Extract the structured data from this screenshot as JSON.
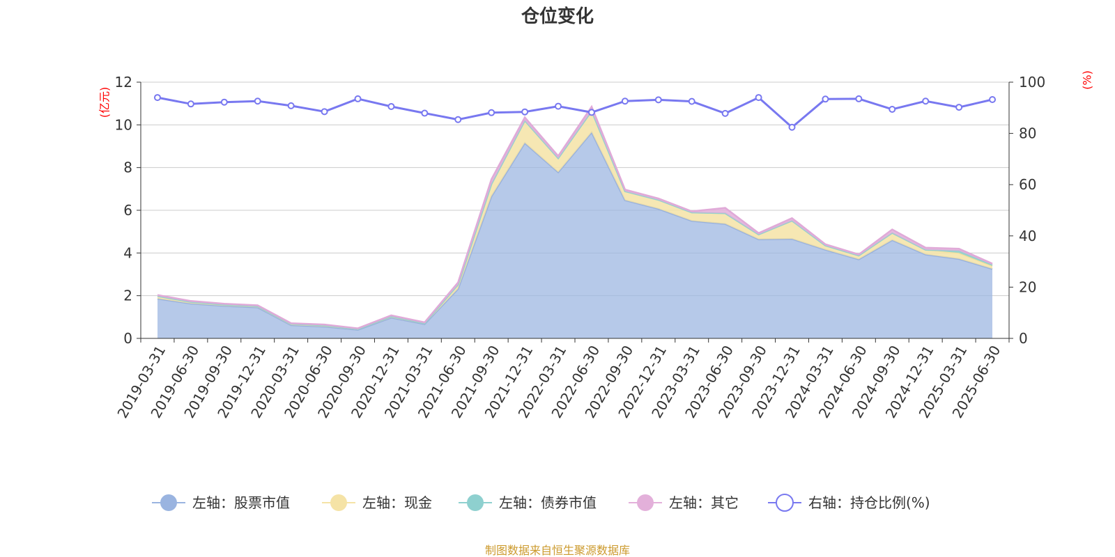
{
  "chart_data": {
    "type": "area",
    "title": "仓位变化",
    "left_axis_unit": "(亿元)",
    "right_axis_unit": "(%)",
    "left_ylim": [
      0,
      12
    ],
    "left_yticks": [
      "0",
      "2",
      "4",
      "6",
      "8",
      "10",
      "12"
    ],
    "right_ylim": [
      0,
      100
    ],
    "right_yticks": [
      "0",
      "20",
      "40",
      "60",
      "80",
      "100"
    ],
    "grid": true,
    "legend_position": "bottom",
    "categories": [
      "2019-03-31",
      "2019-06-30",
      "2019-09-30",
      "2019-12-31",
      "2020-03-31",
      "2020-06-30",
      "2020-09-30",
      "2020-12-31",
      "2021-03-31",
      "2021-06-30",
      "2021-09-30",
      "2021-12-31",
      "2022-03-31",
      "2022-06-30",
      "2022-09-30",
      "2022-12-31",
      "2023-03-31",
      "2023-06-30",
      "2023-09-30",
      "2023-12-31",
      "2024-03-31",
      "2024-06-30",
      "2024-09-30",
      "2024-12-31",
      "2025-03-31",
      "2025-06-30"
    ],
    "series": [
      {
        "name": "左轴：股票市值",
        "axis": "left",
        "kind": "stacked-area",
        "color": "#9ab4e0",
        "values": [
          1.86,
          1.63,
          1.52,
          1.45,
          0.62,
          0.55,
          0.4,
          0.97,
          0.67,
          2.32,
          6.65,
          9.15,
          7.78,
          9.65,
          6.47,
          6.07,
          5.5,
          5.36,
          4.64,
          4.66,
          4.15,
          3.7,
          4.6,
          3.93,
          3.72,
          3.25
        ]
      },
      {
        "name": "左轴：现金",
        "axis": "left",
        "kind": "stacked-area",
        "color": "#f5e3a6",
        "values": [
          0.12,
          0.08,
          0.06,
          0.06,
          0.06,
          0.06,
          0.04,
          0.06,
          0.04,
          0.2,
          0.58,
          1.05,
          0.66,
          1.0,
          0.42,
          0.42,
          0.4,
          0.5,
          0.23,
          0.85,
          0.2,
          0.18,
          0.34,
          0.22,
          0.28,
          0.14
        ]
      },
      {
        "name": "左轴：债券市值",
        "axis": "left",
        "kind": "stacked-area",
        "color": "#8ed0cf",
        "values": [
          0,
          0,
          0,
          0,
          0,
          0,
          0,
          0,
          0,
          0,
          0,
          0,
          0,
          0,
          0,
          0,
          0,
          0,
          0,
          0,
          0,
          0,
          0,
          0,
          0.1,
          0.06
        ]
      },
      {
        "name": "左轴：其它",
        "axis": "left",
        "kind": "stacked-area",
        "color": "#e3b0da",
        "values": [
          0.05,
          0.04,
          0.04,
          0.04,
          0.03,
          0.04,
          0.03,
          0.05,
          0.04,
          0.1,
          0.22,
          0.15,
          0.1,
          0.2,
          0.08,
          0.06,
          0.05,
          0.25,
          0.06,
          0.12,
          0.06,
          0.05,
          0.16,
          0.1,
          0.1,
          0.05
        ]
      },
      {
        "name": "右轴：持仓比例(%)",
        "axis": "right",
        "kind": "line",
        "color": "#7878f0",
        "values": [
          94,
          91.5,
          92.2,
          92.6,
          90.8,
          88.5,
          93.5,
          90.5,
          87.9,
          85.4,
          88.1,
          88.4,
          90.6,
          88.2,
          92.6,
          93.1,
          92.5,
          87.8,
          94.0,
          82.4,
          93.4,
          93.5,
          89.4,
          92.6,
          90.2,
          93.2
        ]
      }
    ]
  },
  "footer": {
    "source": "制图数据来自恒生聚源数据库"
  },
  "colors": {
    "unit_text": "#ff0000",
    "source_text": "#cc9a2d",
    "grid": "#cccccc",
    "axis": "#333333"
  }
}
